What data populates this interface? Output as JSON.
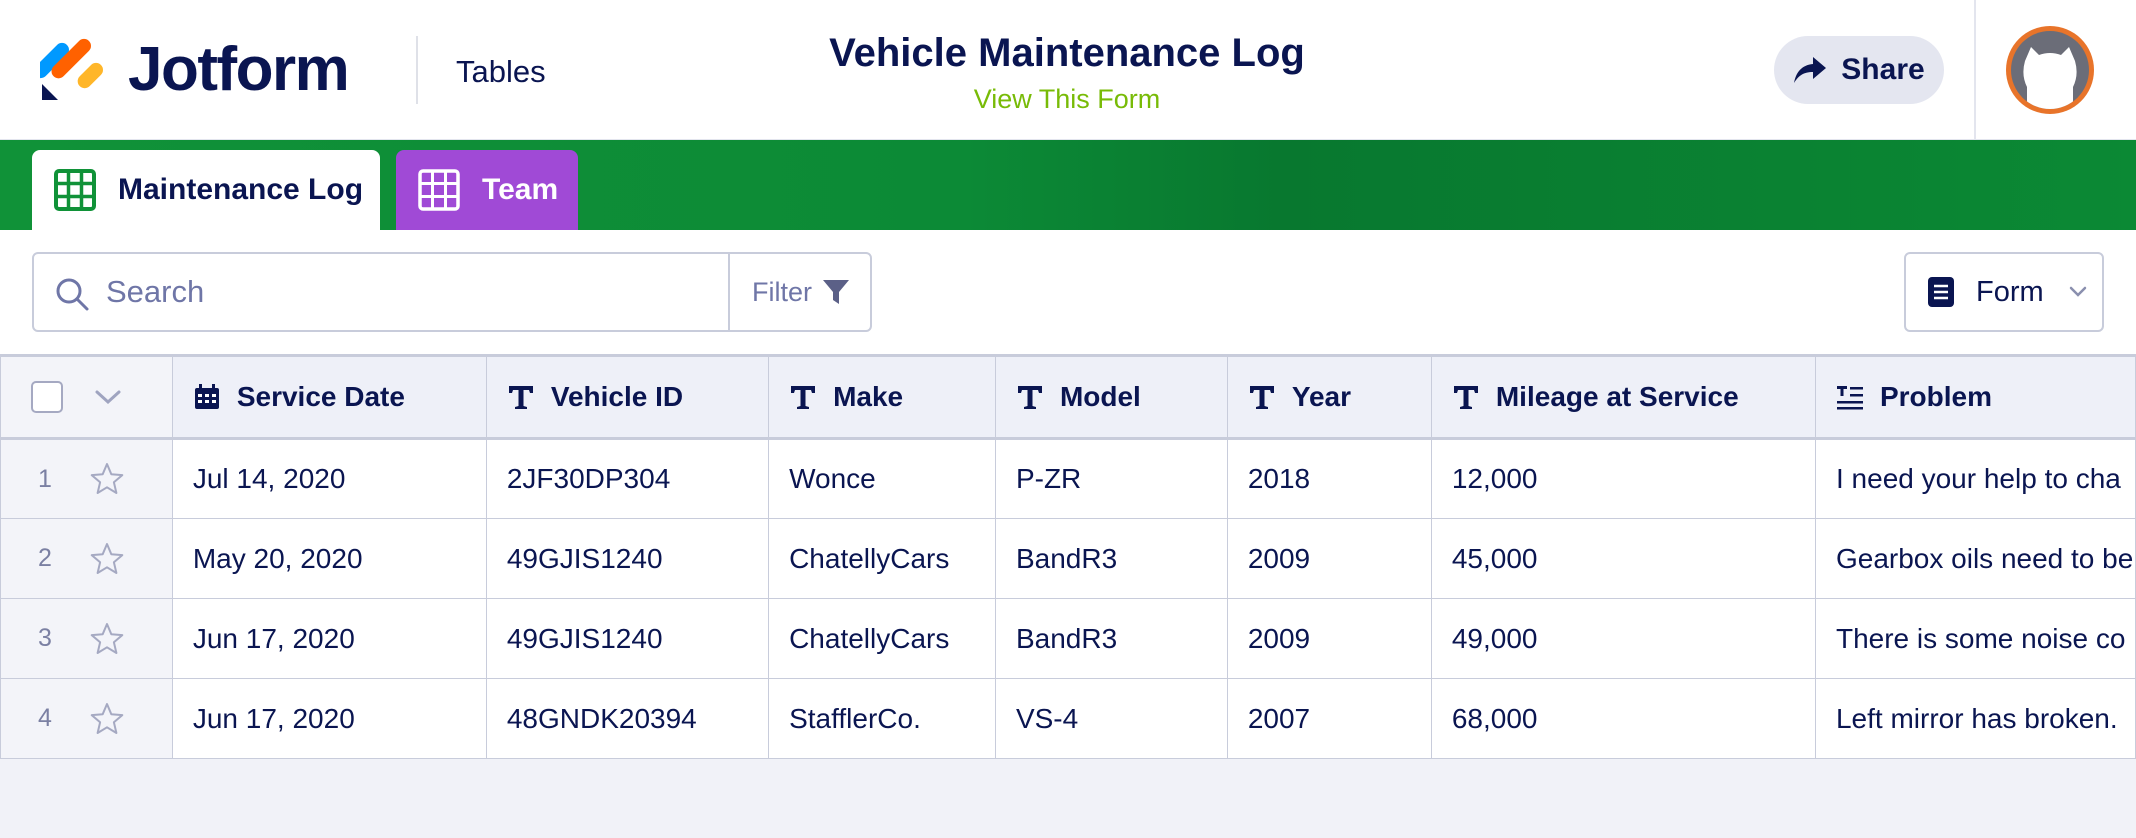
{
  "header": {
    "brand": "Jotform",
    "section_link": "Tables",
    "title": "Vehicle Maintenance Log",
    "subtitle_link": "View This Form",
    "share_label": "Share",
    "logo_colors": [
      "#0099ff",
      "#ff6100",
      "#ffb629",
      "#0a1551"
    ]
  },
  "tabs": [
    {
      "label": "Maintenance Log",
      "icon": "table-grid-icon",
      "active": true,
      "color": "#109238"
    },
    {
      "label": "Team",
      "icon": "table-grid-icon",
      "active": false,
      "color": "#a04ad6"
    }
  ],
  "toolbar": {
    "search_placeholder": "Search",
    "filter_label": "Filter",
    "view_label": "Form"
  },
  "table": {
    "columns": [
      {
        "label": "Service Date",
        "icon": "calendar-icon"
      },
      {
        "label": "Vehicle ID",
        "icon": "text-type-icon"
      },
      {
        "label": "Make",
        "icon": "text-type-icon"
      },
      {
        "label": "Model",
        "icon": "text-type-icon"
      },
      {
        "label": "Year",
        "icon": "text-type-icon"
      },
      {
        "label": "Mileage at Service",
        "icon": "text-type-icon"
      },
      {
        "label": "Problem",
        "icon": "long-text-icon"
      }
    ],
    "rows": [
      {
        "num": "1",
        "cells": [
          "Jul 14, 2020",
          "2JF30DP304",
          "Wonce",
          "P-ZR",
          "2018",
          "12,000",
          "I need your help to cha"
        ]
      },
      {
        "num": "2",
        "cells": [
          "May 20, 2020",
          "49GJIS1240",
          "ChatellyCars",
          "BandR3",
          "2009",
          "45,000",
          "Gearbox oils need to be"
        ]
      },
      {
        "num": "3",
        "cells": [
          "Jun 17, 2020",
          "49GJIS1240",
          "ChatellyCars",
          "BandR3",
          "2009",
          "49,000",
          "There is some noise co"
        ]
      },
      {
        "num": "4",
        "cells": [
          "Jun 17, 2020",
          "48GNDK20394",
          "StafflerCo.",
          "VS-4",
          "2007",
          "68,000",
          "Left mirror has broken."
        ]
      }
    ]
  }
}
